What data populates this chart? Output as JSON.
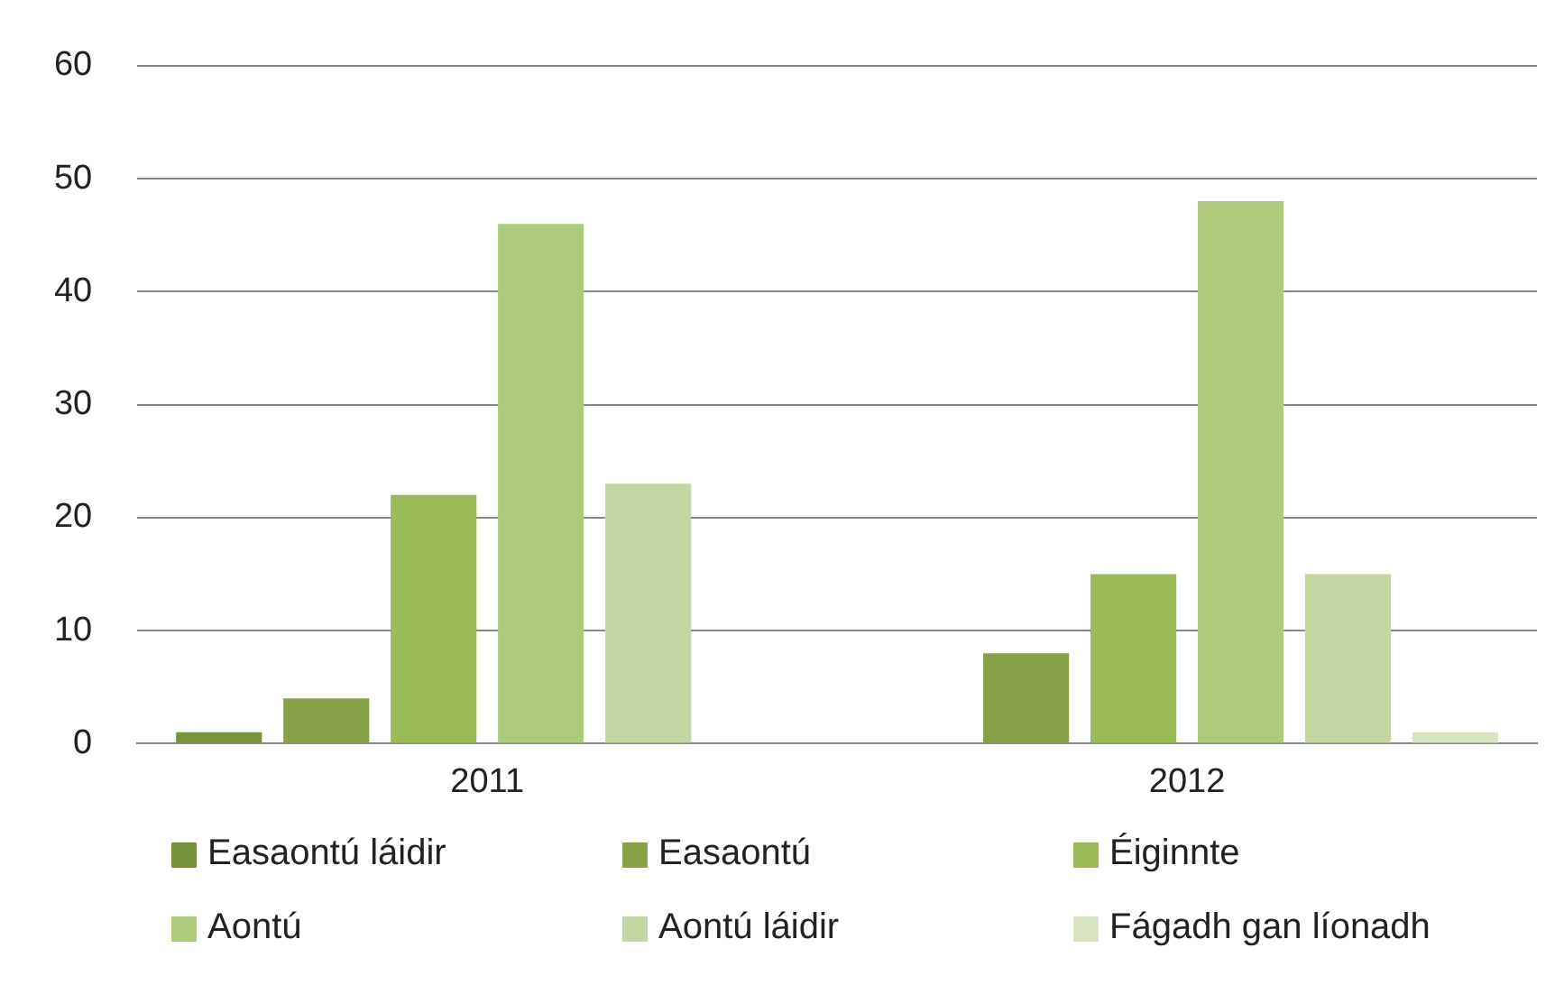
{
  "chart_data": {
    "type": "bar",
    "categories": [
      "2011",
      "2012"
    ],
    "series": [
      {
        "name": "Easaontú láidir",
        "color": "#77933c",
        "values": [
          1,
          0
        ]
      },
      {
        "name": "Easaontú",
        "color": "#86a045",
        "values": [
          4,
          8
        ]
      },
      {
        "name": "Éiginnte",
        "color": "#9bbb59",
        "values": [
          22,
          15
        ]
      },
      {
        "name": "Aontú",
        "color": "#adc97a",
        "values": [
          46,
          48
        ]
      },
      {
        "name": "Aontú láidir",
        "color": "#c3d6a2",
        "values": [
          23,
          15
        ]
      },
      {
        "name": "Fágadh gan líonadh",
        "color": "#d7e4bd",
        "values": [
          0,
          1
        ]
      }
    ],
    "ylim": [
      0,
      60
    ],
    "yticks": [
      0,
      10,
      20,
      30,
      40,
      50,
      60
    ],
    "grid": "y",
    "legend": "bottom"
  }
}
